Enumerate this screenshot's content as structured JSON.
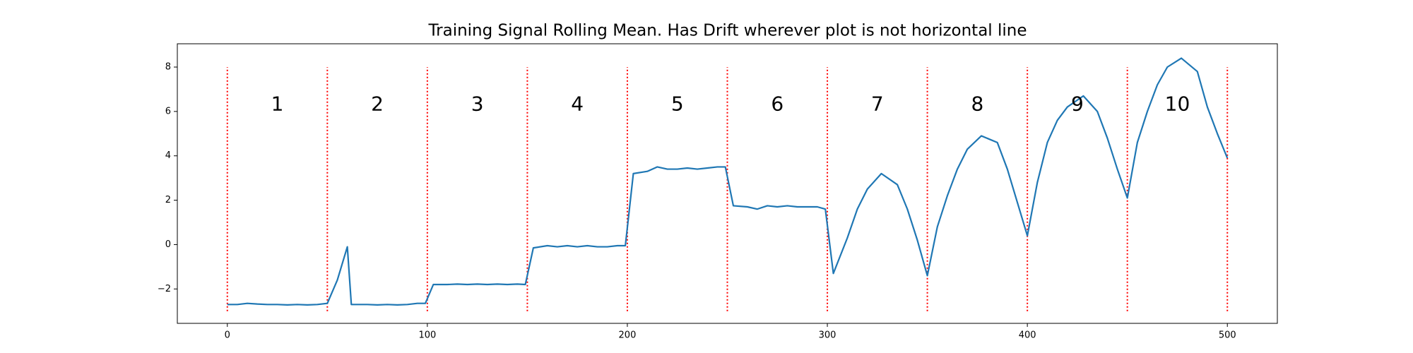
{
  "chart_data": {
    "type": "line",
    "title": "Training Signal Rolling Mean. Has Drift wherever plot is not horizontal line",
    "x": [
      0,
      5,
      10,
      15,
      20,
      25,
      30,
      35,
      40,
      45,
      50,
      55,
      60,
      62,
      65,
      70,
      75,
      80,
      85,
      90,
      95,
      99,
      103,
      110,
      115,
      120,
      125,
      130,
      135,
      140,
      145,
      149,
      153,
      160,
      165,
      170,
      175,
      180,
      185,
      190,
      195,
      199,
      203,
      210,
      215,
      220,
      225,
      230,
      235,
      240,
      245,
      249,
      253,
      260,
      265,
      270,
      275,
      280,
      285,
      290,
      295,
      299,
      303,
      310,
      315,
      320,
      327,
      335,
      340,
      345,
      350,
      355,
      360,
      365,
      370,
      377,
      385,
      390,
      395,
      400,
      405,
      410,
      415,
      420,
      428,
      435,
      440,
      445,
      450,
      455,
      460,
      465,
      470,
      477,
      485,
      490,
      495,
      500
    ],
    "series": [
      {
        "color": "#1f77b4",
        "values": [
          -2.7,
          -2.7,
          -2.65,
          -2.68,
          -2.7,
          -2.7,
          -2.72,
          -2.7,
          -2.72,
          -2.7,
          -2.65,
          -1.6,
          -0.1,
          -2.7,
          -2.7,
          -2.7,
          -2.72,
          -2.7,
          -2.72,
          -2.7,
          -2.65,
          -2.65,
          -1.8,
          -1.8,
          -1.78,
          -1.8,
          -1.78,
          -1.8,
          -1.78,
          -1.8,
          -1.78,
          -1.8,
          -0.15,
          -0.05,
          -0.1,
          -0.05,
          -0.1,
          -0.05,
          -0.1,
          -0.1,
          -0.05,
          -0.05,
          3.2,
          3.3,
          3.5,
          3.4,
          3.4,
          3.45,
          3.4,
          3.45,
          3.5,
          3.5,
          1.75,
          1.7,
          1.6,
          1.75,
          1.7,
          1.75,
          1.7,
          1.7,
          1.7,
          1.6,
          -1.3,
          0.3,
          1.6,
          2.5,
          3.2,
          2.7,
          1.6,
          0.2,
          -1.4,
          0.8,
          2.2,
          3.4,
          4.3,
          4.9,
          4.6,
          3.4,
          1.9,
          0.4,
          2.8,
          4.6,
          5.6,
          6.2,
          6.7,
          6.0,
          4.8,
          3.4,
          2.1,
          4.6,
          6.0,
          7.2,
          8.0,
          8.4,
          7.8,
          6.2,
          5.0,
          3.9
        ]
      }
    ],
    "vlines": {
      "x": [
        0,
        50,
        100,
        150,
        200,
        250,
        300,
        350,
        400,
        450,
        500
      ],
      "ymin": -3,
      "ymax": 8,
      "color": "red"
    },
    "annotations": [
      {
        "text": "1",
        "x": 25,
        "y": 6.3
      },
      {
        "text": "2",
        "x": 75,
        "y": 6.3
      },
      {
        "text": "3",
        "x": 125,
        "y": 6.3
      },
      {
        "text": "4",
        "x": 175,
        "y": 6.3
      },
      {
        "text": "5",
        "x": 225,
        "y": 6.3
      },
      {
        "text": "6",
        "x": 275,
        "y": 6.3
      },
      {
        "text": "7",
        "x": 325,
        "y": 6.3
      },
      {
        "text": "8",
        "x": 375,
        "y": 6.3
      },
      {
        "text": "9",
        "x": 425,
        "y": 6.3
      },
      {
        "text": "10",
        "x": 475,
        "y": 6.3
      }
    ],
    "xlim": [
      -25,
      525
    ],
    "ylim": [
      -3.55,
      9.05
    ],
    "xticks": [
      0,
      100,
      200,
      300,
      400,
      500
    ],
    "yticks": [
      {
        "value": -2,
        "label": "−2"
      },
      0,
      2,
      4,
      6,
      8
    ]
  }
}
